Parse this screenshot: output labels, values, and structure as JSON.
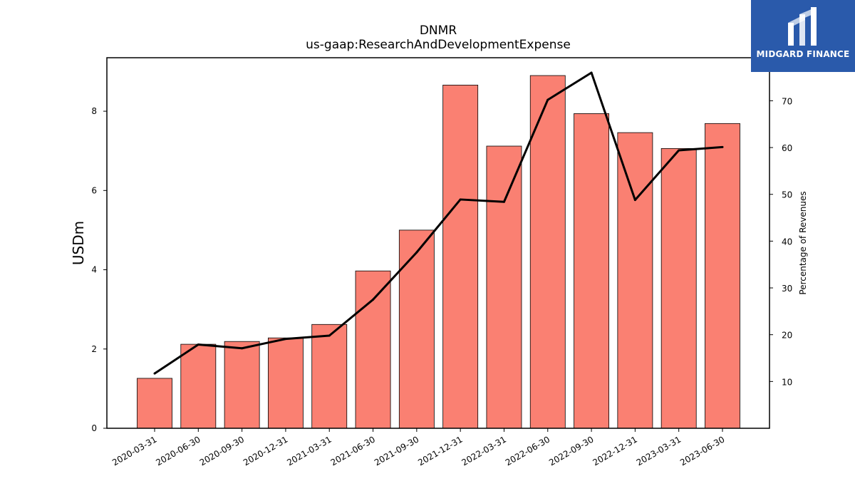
{
  "brand": {
    "name": "MIDGARD FINANCE",
    "color": "#2a5aab"
  },
  "chart_data": {
    "type": "bar",
    "title": "DNMR",
    "subtitle": "us-gaap:ResearchAndDevelopmentExpense",
    "ylabel": "USDm",
    "y2label": "Percentage of Revenues",
    "categories": [
      "2020-03-31",
      "2020-06-30",
      "2020-09-30",
      "2020-12-31",
      "2021-03-31",
      "2021-06-30",
      "2021-09-30",
      "2021-12-31",
      "2022-03-31",
      "2022-06-30",
      "2022-09-30",
      "2022-12-31",
      "2023-03-31",
      "2023-06-30"
    ],
    "series": [
      {
        "type": "bar",
        "axis": "left",
        "color": "#fa8072",
        "values": [
          1.26,
          2.12,
          2.19,
          2.28,
          2.62,
          3.97,
          5.0,
          8.66,
          7.12,
          8.9,
          7.94,
          7.46,
          7.06,
          7.69
        ]
      },
      {
        "type": "line",
        "axis": "right",
        "color": "#000000",
        "values": [
          11.7,
          17.9,
          17.1,
          19.1,
          19.8,
          27.5,
          37.6,
          48.9,
          48.4,
          70.2,
          76.0,
          48.8,
          59.4,
          60.1
        ]
      }
    ],
    "ylim": [
      0,
      9.35
    ],
    "yticks": [
      0,
      2,
      4,
      6,
      8
    ],
    "y2lim": [
      0,
      79.2
    ],
    "y2ticks": [
      10,
      20,
      30,
      40,
      50,
      60,
      70
    ],
    "grid": false,
    "legend": "none"
  }
}
